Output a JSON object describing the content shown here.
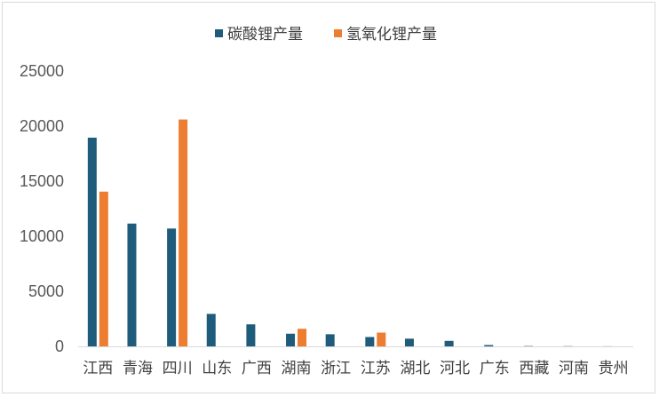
{
  "chart_data": {
    "type": "bar",
    "title": "",
    "xlabel": "",
    "ylabel": "",
    "ylim": [
      0,
      25000
    ],
    "yticks": [
      0,
      5000,
      10000,
      15000,
      20000,
      25000
    ],
    "grid": false,
    "legend_position": "top",
    "categories": [
      "江西",
      "青海",
      "四川",
      "山东",
      "广西",
      "湖南",
      "浙江",
      "江苏",
      "湖北",
      "河北",
      "广东",
      "西藏",
      "河南",
      "贵州"
    ],
    "series": [
      {
        "name": "碳酸锂产量",
        "color": "#1f5b7a",
        "values": [
          18950,
          11150,
          10700,
          2950,
          2000,
          1150,
          1100,
          850,
          700,
          500,
          120,
          30,
          20,
          10
        ]
      },
      {
        "name": "氢氧化锂产量",
        "color": "#ed7d31",
        "values": [
          14050,
          0,
          20600,
          0,
          0,
          1600,
          0,
          1250,
          0,
          0,
          0,
          0,
          0,
          0
        ]
      }
    ]
  }
}
